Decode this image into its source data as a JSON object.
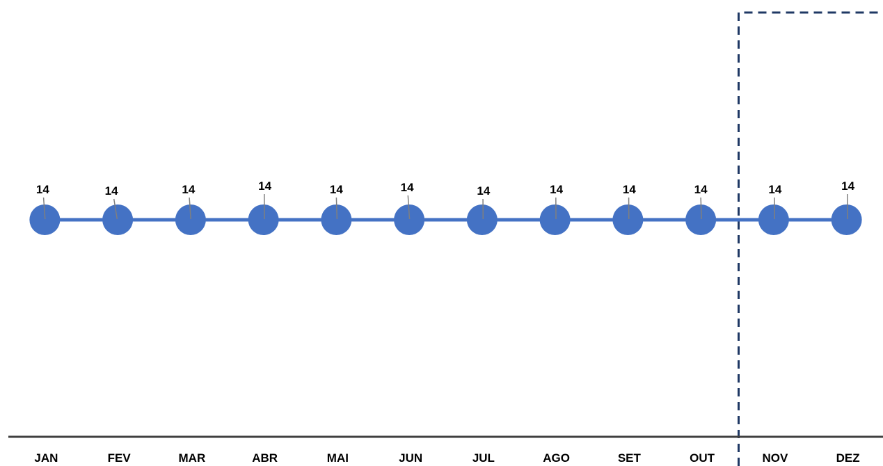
{
  "chart_data": {
    "type": "line",
    "title": "",
    "xlabel": "",
    "ylabel": "",
    "categories": [
      "JAN",
      "FEV",
      "MAR",
      "ABR",
      "MAI",
      "JUN",
      "JUL",
      "AGO",
      "SET",
      "OUT",
      "NOV",
      "DEZ"
    ],
    "series": [
      {
        "values": [
          14,
          14,
          14,
          14,
          14,
          14,
          14,
          14,
          14,
          14,
          14,
          14
        ],
        "data_labels": [
          "14",
          "14",
          "14",
          "14",
          "14",
          "14",
          "14",
          "14",
          "14",
          "14",
          "14",
          "14"
        ],
        "color": "#4472C4"
      }
    ],
    "ylim": [
      0,
      28
    ],
    "grid": false,
    "legend": "none",
    "highlight_region": {
      "from_category": "NOV",
      "to_category": "DEZ",
      "style": "dashed",
      "color": "#1F3864"
    },
    "axis_color": "#404040",
    "leader_line_color": "#7F7F7F"
  }
}
